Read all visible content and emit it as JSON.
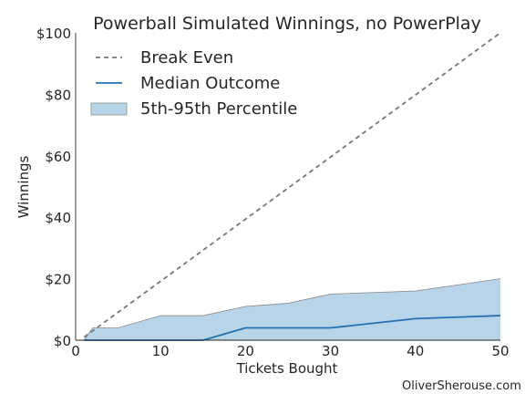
{
  "chart_data": {
    "type": "area",
    "title": "Powerball Simulated Winnings, no PowerPlay",
    "xlabel": "Tickets Bought",
    "ylabel": "Winnings",
    "xlim": [
      0,
      50
    ],
    "ylim": [
      0,
      100
    ],
    "x_ticks": [
      0,
      10,
      20,
      30,
      40,
      50
    ],
    "y_ticks": [
      0,
      20,
      40,
      60,
      80,
      100
    ],
    "y_tick_labels": [
      "$0",
      "$20",
      "$40",
      "$60",
      "$80",
      "$100"
    ],
    "grid": false,
    "legend_position": "top-left",
    "series": [
      {
        "name": "Break Even",
        "style": "dashed",
        "color": "#777777",
        "x": [
          1,
          50
        ],
        "y": [
          1,
          100
        ]
      },
      {
        "name": "Median Outcome",
        "style": "solid",
        "color": "#2171b5",
        "x": [
          1,
          2,
          5,
          10,
          15,
          20,
          25,
          30,
          40,
          50
        ],
        "y": [
          0,
          0,
          0,
          0,
          0,
          4,
          4,
          4,
          7,
          8
        ]
      },
      {
        "name": "5th-95th Percentile",
        "style": "band",
        "color": "#b8d4e8",
        "edge_color": "#8c8c8c",
        "x": [
          1,
          2,
          5,
          10,
          15,
          20,
          25,
          30,
          40,
          50
        ],
        "lower": [
          0,
          0,
          0,
          0,
          0,
          0,
          0,
          0,
          0,
          0
        ],
        "upper": [
          0,
          4,
          4,
          8,
          8,
          11,
          12,
          15,
          16,
          20
        ]
      }
    ]
  },
  "credit": "OliverSherouse.com"
}
